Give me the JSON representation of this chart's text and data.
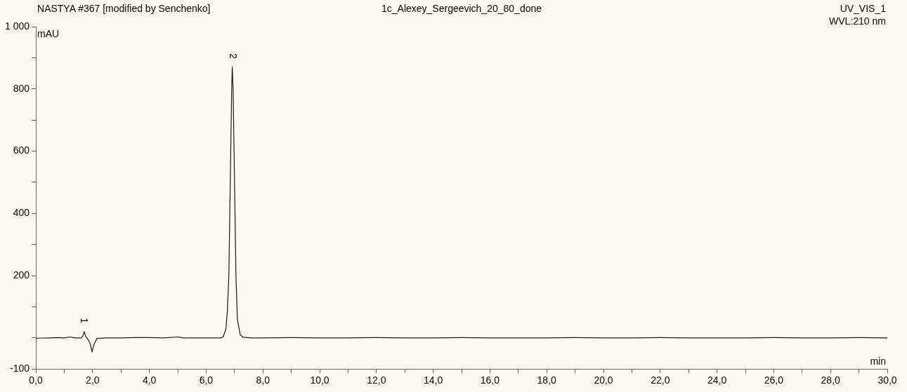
{
  "chart_data": {
    "type": "line",
    "title": "1c_Alexey_Sergeevich_20_80_done",
    "xlabel": "min",
    "ylabel": "mAU",
    "annotations": [
      "NASTYA #367 [modified by Senchenko]",
      "UV_VIS_1",
      "WVL:210 nm",
      {
        "text": "1",
        "x": 1.69,
        "y": 20
      },
      {
        "text": "2",
        "x": 6.92,
        "y": 870
      }
    ],
    "x": [
      0,
      0.5,
      0.8,
      1.0,
      1.2,
      1.4,
      1.6,
      1.65,
      1.7,
      1.75,
      1.8,
      1.9,
      1.98,
      2.05,
      2.15,
      2.5,
      3.0,
      3.5,
      4.0,
      4.5,
      5.0,
      5.2,
      5.5,
      6.0,
      6.5,
      6.6,
      6.7,
      6.75,
      6.8,
      6.85,
      6.9,
      6.92,
      6.95,
      7.0,
      7.05,
      7.1,
      7.2,
      7.3,
      7.6,
      8,
      9,
      10,
      11,
      12,
      13,
      14,
      15,
      16,
      17,
      18,
      19,
      20,
      21,
      22,
      23,
      24,
      25,
      26,
      27,
      28,
      29,
      30
    ],
    "series": [
      {
        "color": "#1a1a1a",
        "values": [
          -1,
          0,
          1,
          0,
          3,
          0,
          0,
          5,
          20,
          5,
          0,
          -15,
          -45,
          -20,
          -2,
          0,
          0,
          1,
          1,
          0,
          3,
          0,
          0,
          0,
          0,
          3,
          30,
          90,
          200,
          500,
          800,
          870,
          800,
          500,
          200,
          60,
          10,
          2,
          0,
          0,
          1,
          0,
          0,
          1,
          0,
          0,
          1,
          0,
          0,
          0,
          1,
          0,
          0,
          1,
          0,
          0,
          0,
          1,
          0,
          0,
          1,
          0
        ]
      }
    ],
    "xlim": [
      0,
      30
    ],
    "xticks": [
      {
        "value": 0,
        "label": "0,0"
      },
      {
        "value": 1,
        "label": null
      },
      {
        "value": 2,
        "label": "2,0"
      },
      {
        "value": 3,
        "label": null
      },
      {
        "value": 4,
        "label": "4,0"
      },
      {
        "value": 5,
        "label": null
      },
      {
        "value": 6,
        "label": "6,0"
      },
      {
        "value": 7,
        "label": null
      },
      {
        "value": 8,
        "label": "8,0"
      },
      {
        "value": 9,
        "label": null
      },
      {
        "value": 10,
        "label": "10,0"
      },
      {
        "value": 11,
        "label": null
      },
      {
        "value": 12,
        "label": "12,0"
      },
      {
        "value": 13,
        "label": null
      },
      {
        "value": 14,
        "label": "14,0"
      },
      {
        "value": 15,
        "label": null
      },
      {
        "value": 16,
        "label": "16,0"
      },
      {
        "value": 17,
        "label": null
      },
      {
        "value": 18,
        "label": "18,0"
      },
      {
        "value": 19,
        "label": null
      },
      {
        "value": 20,
        "label": "20,0"
      },
      {
        "value": 21,
        "label": null
      },
      {
        "value": 22,
        "label": "22,0"
      },
      {
        "value": 23,
        "label": null
      },
      {
        "value": 24,
        "label": "24,0"
      },
      {
        "value": 25,
        "label": null
      },
      {
        "value": 26,
        "label": "26,0"
      },
      {
        "value": 27,
        "label": null
      },
      {
        "value": 28,
        "label": "28,0"
      },
      {
        "value": 29,
        "label": null
      },
      {
        "value": 30,
        "label": "30,0"
      }
    ],
    "ylim": [
      -100,
      1000
    ],
    "yticks": [
      {
        "value": -100,
        "label": "-100"
      },
      {
        "value": 0,
        "label": null
      },
      {
        "value": 100,
        "label": null
      },
      {
        "value": 200,
        "label": "200"
      },
      {
        "value": 300,
        "label": null
      },
      {
        "value": 400,
        "label": "400"
      },
      {
        "value": 500,
        "label": null
      },
      {
        "value": 600,
        "label": "600"
      },
      {
        "value": 700,
        "label": null
      },
      {
        "value": 800,
        "label": "800"
      },
      {
        "value": 900,
        "label": null
      },
      {
        "value": 1000,
        "label": "1 000"
      }
    ],
    "legend": false,
    "grid": false,
    "marker": "none",
    "line_style": "solid"
  }
}
